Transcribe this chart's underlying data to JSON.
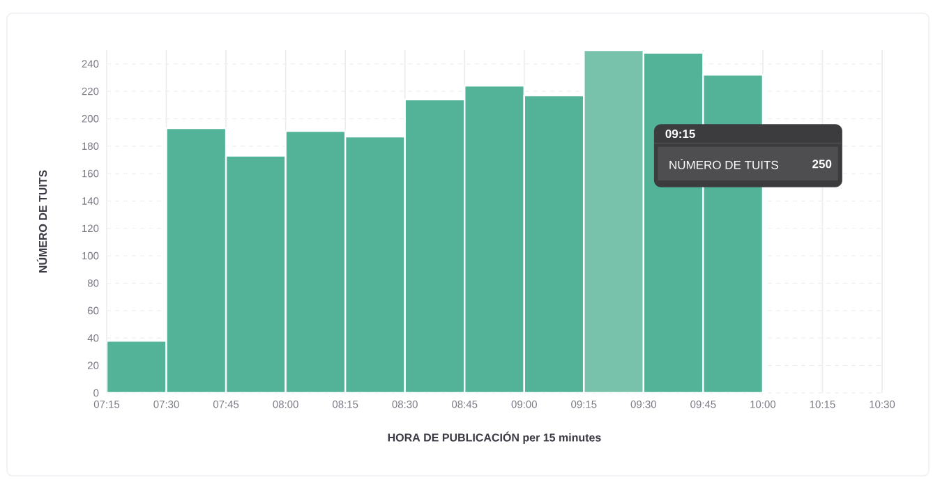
{
  "chart_data": {
    "type": "histogram",
    "xlabel": "HORA DE PUBLICACIÓN per 15 minutes",
    "ylabel": "NÚMERO DE TUITS",
    "bins": [
      7.25,
      7.5,
      7.75,
      8.0,
      8.25,
      8.5,
      8.75,
      9.0,
      9.25,
      9.5,
      9.75,
      10.0,
      10.25
    ],
    "values": [
      38,
      193,
      173,
      191,
      187,
      214,
      224,
      217,
      250,
      248,
      232,
      null
    ],
    "colors": [
      "#52b398",
      "#52b398",
      "#52b398",
      "#52b398",
      "#52b398",
      "#52b398",
      "#52b398",
      "#52b398",
      "#78c2ab",
      "#52b398",
      "#52b398",
      "#52b398"
    ],
    "xlim": [
      7.25,
      10.5
    ],
    "xticks": [
      {
        "value": 7.25,
        "label": "07:15"
      },
      {
        "value": 7.5,
        "label": "07:30"
      },
      {
        "value": 7.75,
        "label": "07:45"
      },
      {
        "value": 8.0,
        "label": "08:00"
      },
      {
        "value": 8.25,
        "label": "08:15"
      },
      {
        "value": 8.5,
        "label": "08:30"
      },
      {
        "value": 8.75,
        "label": "08:45"
      },
      {
        "value": 9.0,
        "label": "09:00"
      },
      {
        "value": 9.25,
        "label": "09:15"
      },
      {
        "value": 9.5,
        "label": "09:30"
      },
      {
        "value": 9.75,
        "label": "09:45"
      },
      {
        "value": 10.0,
        "label": "10:00"
      },
      {
        "value": 10.25,
        "label": "10:15"
      },
      {
        "value": 10.5,
        "label": "10:30"
      }
    ],
    "ylim": [
      0,
      250
    ],
    "yticks": [
      0,
      20,
      40,
      60,
      80,
      100,
      120,
      140,
      160,
      180,
      200,
      220,
      240
    ],
    "grid": true,
    "annotations": [
      "09:15",
      "NÚMERO DE TUITS",
      "250"
    ]
  }
}
